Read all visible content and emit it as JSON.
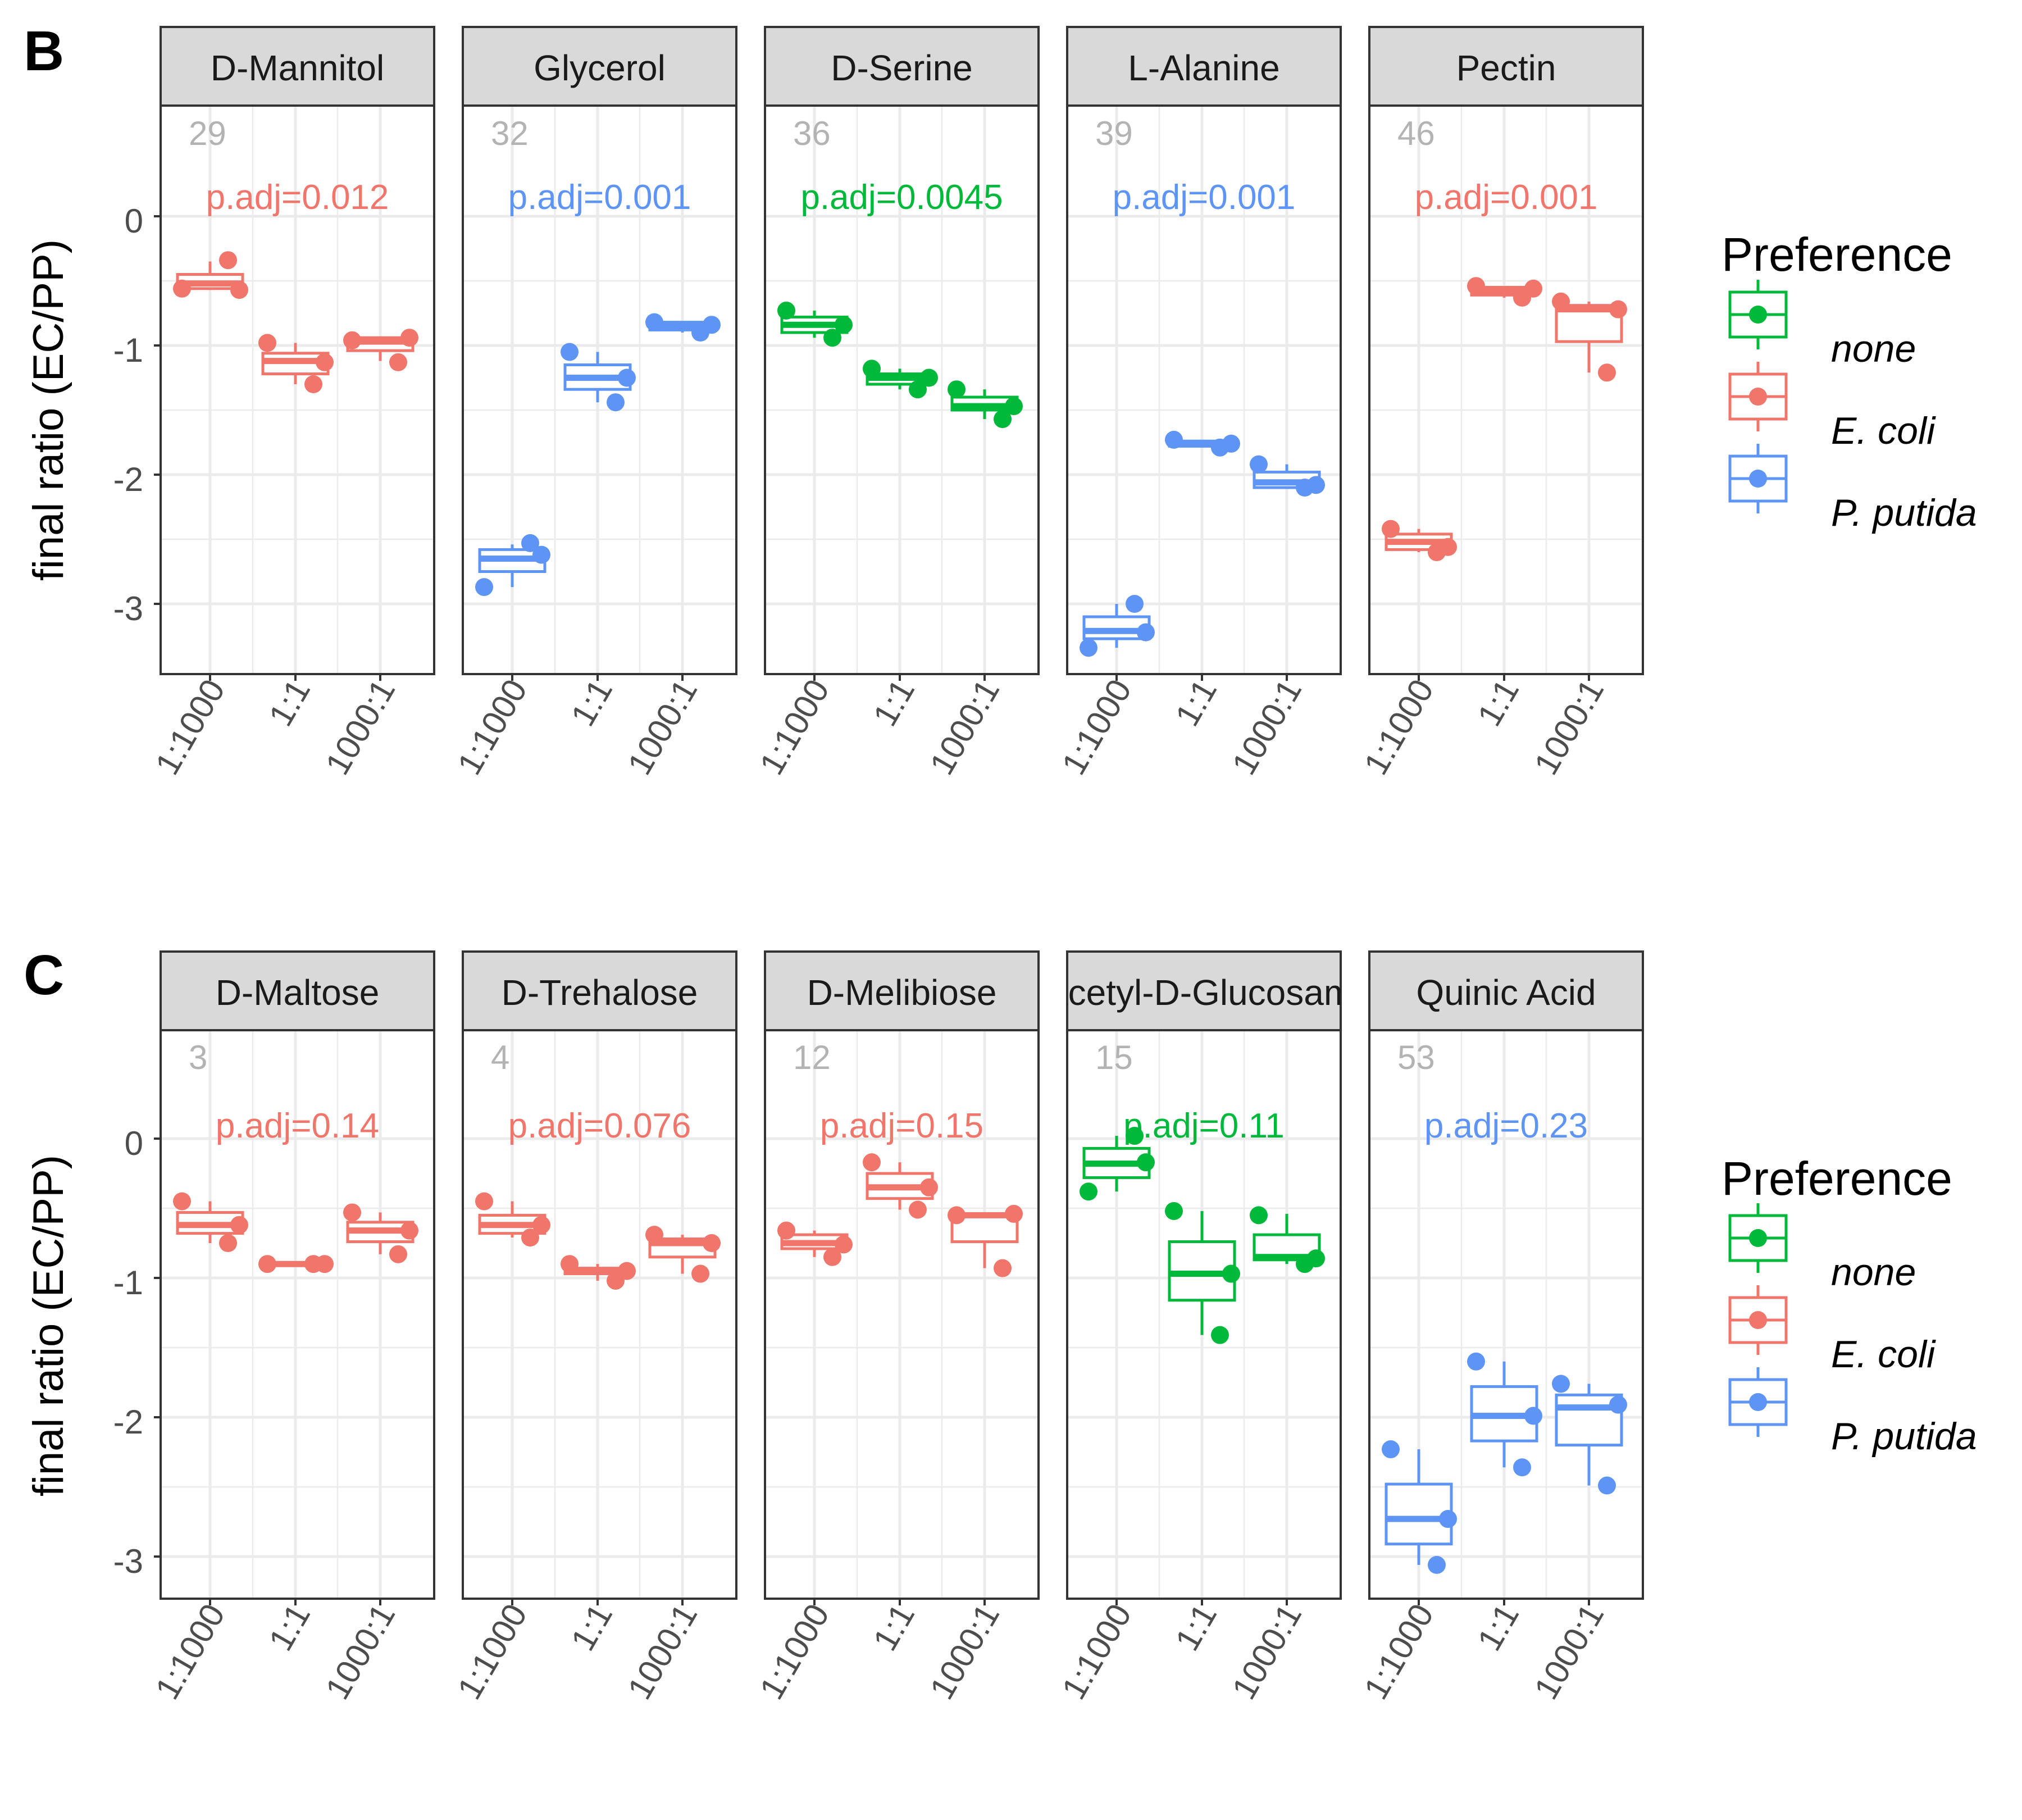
{
  "figure": {
    "y_axis_label": "final ratio (EC/PP)",
    "x_tick_labels": [
      "1:1000",
      "1:1",
      "1000:1"
    ],
    "legend_title": "Preference",
    "legend_entries": [
      {
        "key": "none",
        "label": "none"
      },
      {
        "key": "ecoli",
        "label": "E. coli"
      },
      {
        "key": "pputida",
        "label": "P. putida"
      }
    ]
  },
  "colors": {
    "none": "#00B83A",
    "ecoli": "#F0756A",
    "pputida": "#5E95F5",
    "strip_fill": "#D9D9D9",
    "gridline": "#EBEBEB",
    "panel_number": "#B3B3B3"
  },
  "chart_data": [
    {
      "type": "box",
      "row_label": "B",
      "ylim": [
        -3.5,
        0.85
      ],
      "yticks": [
        0,
        -1,
        -2,
        -3
      ],
      "ytick_labels": [
        "0",
        "-1",
        "-2",
        "-3"
      ],
      "categories": [
        "1:1000",
        "1:1",
        "1000:1"
      ],
      "legend_position": "right",
      "grid": true,
      "panels": [
        {
          "title": "D-Mannitol",
          "number": "29",
          "pvalue": "p.adj=0.012",
          "preference": "ecoli",
          "boxes": [
            {
              "q1": -0.56,
              "median": -0.52,
              "q3": -0.45,
              "whisker_low": -0.56,
              "whisker_high": -0.35,
              "points": [
                -0.56,
                -0.34,
                -0.57
              ]
            },
            {
              "q1": -1.22,
              "median": -1.12,
              "q3": -1.06,
              "whisker_low": -1.3,
              "whisker_high": -0.98,
              "points": [
                -0.98,
                -1.3,
                -1.13
              ]
            },
            {
              "q1": -1.04,
              "median": -0.97,
              "q3": -0.94,
              "whisker_low": -1.12,
              "whisker_high": -0.93,
              "points": [
                -0.96,
                -1.13,
                -0.94
              ]
            }
          ]
        },
        {
          "title": "Glycerol",
          "number": "32",
          "pvalue": "p.adj=0.001",
          "preference": "pputida",
          "boxes": [
            {
              "q1": -2.75,
              "median": -2.65,
              "q3": -2.58,
              "whisker_low": -2.87,
              "whisker_high": -2.54,
              "points": [
                -2.87,
                -2.53,
                -2.62
              ]
            },
            {
              "q1": -1.34,
              "median": -1.25,
              "q3": -1.15,
              "whisker_low": -1.44,
              "whisker_high": -1.05,
              "points": [
                -1.05,
                -1.44,
                -1.25
              ]
            },
            {
              "q1": -0.88,
              "median": -0.85,
              "q3": -0.82,
              "whisker_low": -0.9,
              "whisker_high": -0.82,
              "points": [
                -0.82,
                -0.9,
                -0.84
              ]
            }
          ]
        },
        {
          "title": "D-Serine",
          "number": "36",
          "pvalue": "p.adj=0.0045",
          "preference": "none",
          "boxes": [
            {
              "q1": -0.9,
              "median": -0.84,
              "q3": -0.78,
              "whisker_low": -0.94,
              "whisker_high": -0.73,
              "points": [
                -0.73,
                -0.94,
                -0.84
              ]
            },
            {
              "q1": -1.3,
              "median": -1.25,
              "q3": -1.22,
              "whisker_low": -1.34,
              "whisker_high": -1.18,
              "points": [
                -1.18,
                -1.34,
                -1.25
              ]
            },
            {
              "q1": -1.5,
              "median": -1.47,
              "q3": -1.4,
              "whisker_low": -1.57,
              "whisker_high": -1.34,
              "points": [
                -1.34,
                -1.57,
                -1.47
              ]
            }
          ]
        },
        {
          "title": "L-Alanine",
          "number": "39",
          "pvalue": "p.adj=0.001",
          "preference": "pputida",
          "boxes": [
            {
              "q1": -3.27,
              "median": -3.21,
              "q3": -3.1,
              "whisker_low": -3.34,
              "whisker_high": -3.0,
              "points": [
                -3.34,
                -3.0,
                -3.22
              ]
            },
            {
              "q1": -1.78,
              "median": -1.76,
              "q3": -1.74,
              "whisker_low": -1.79,
              "whisker_high": -1.73,
              "points": [
                -1.73,
                -1.79,
                -1.76
              ]
            },
            {
              "q1": -2.1,
              "median": -2.06,
              "q3": -1.98,
              "whisker_low": -2.11,
              "whisker_high": -1.92,
              "points": [
                -1.92,
                -2.1,
                -2.08
              ]
            }
          ]
        },
        {
          "title": "Pectin",
          "number": "46",
          "pvalue": "p.adj=0.001",
          "preference": "ecoli",
          "boxes": [
            {
              "q1": -2.58,
              "median": -2.52,
              "q3": -2.46,
              "whisker_low": -2.6,
              "whisker_high": -2.42,
              "points": [
                -2.42,
                -2.6,
                -2.56
              ]
            },
            {
              "q1": -0.61,
              "median": -0.58,
              "q3": -0.55,
              "whisker_low": -0.63,
              "whisker_high": -0.54,
              "points": [
                -0.54,
                -0.63,
                -0.56
              ]
            },
            {
              "q1": -0.97,
              "median": -0.72,
              "q3": -0.69,
              "whisker_low": -1.21,
              "whisker_high": -0.66,
              "points": [
                -0.66,
                -1.21,
                -0.72
              ]
            }
          ]
        }
      ]
    },
    {
      "type": "box",
      "row_label": "C",
      "ylim": [
        -3.25,
        0.85
      ],
      "yticks": [
        0,
        -1,
        -2,
        -3
      ],
      "ytick_labels": [
        "0",
        "-1",
        "-2",
        "-3"
      ],
      "categories": [
        "1:1000",
        "1:1",
        "1000:1"
      ],
      "legend_position": "right",
      "grid": true,
      "panels": [
        {
          "title": "D-Maltose",
          "number": "3",
          "pvalue": "p.adj=0.14",
          "preference": "ecoli",
          "boxes": [
            {
              "q1": -0.68,
              "median": -0.62,
              "q3": -0.53,
              "whisker_low": -0.75,
              "whisker_high": -0.45,
              "points": [
                -0.45,
                -0.75,
                -0.62
              ]
            },
            {
              "q1": -0.91,
              "median": -0.9,
              "q3": -0.89,
              "whisker_low": -0.92,
              "whisker_high": -0.88,
              "points": [
                -0.9,
                -0.9,
                -0.9
              ]
            },
            {
              "q1": -0.74,
              "median": -0.66,
              "q3": -0.6,
              "whisker_low": -0.83,
              "whisker_high": -0.53,
              "points": [
                -0.53,
                -0.83,
                -0.66
              ]
            }
          ]
        },
        {
          "title": "D-Trehalose",
          "number": "4",
          "pvalue": "p.adj=0.076",
          "preference": "ecoli",
          "boxes": [
            {
              "q1": -0.68,
              "median": -0.62,
              "q3": -0.55,
              "whisker_low": -0.71,
              "whisker_high": -0.45,
              "points": [
                -0.45,
                -0.71,
                -0.62
              ]
            },
            {
              "q1": -0.97,
              "median": -0.95,
              "q3": -0.93,
              "whisker_low": -1.02,
              "whisker_high": -0.9,
              "points": [
                -0.9,
                -1.02,
                -0.95
              ]
            },
            {
              "q1": -0.85,
              "median": -0.75,
              "q3": -0.72,
              "whisker_low": -0.97,
              "whisker_high": -0.69,
              "points": [
                -0.69,
                -0.97,
                -0.75
              ]
            }
          ]
        },
        {
          "title": "D-Melibiose",
          "number": "12",
          "pvalue": "p.adj=0.15",
          "preference": "ecoli",
          "boxes": [
            {
              "q1": -0.79,
              "median": -0.75,
              "q3": -0.69,
              "whisker_low": -0.85,
              "whisker_high": -0.66,
              "points": [
                -0.66,
                -0.85,
                -0.76
              ]
            },
            {
              "q1": -0.43,
              "median": -0.35,
              "q3": -0.25,
              "whisker_low": -0.51,
              "whisker_high": -0.17,
              "points": [
                -0.17,
                -0.51,
                -0.35
              ]
            },
            {
              "q1": -0.74,
              "median": -0.55,
              "q3": -0.54,
              "whisker_low": -0.93,
              "whisker_high": -0.53,
              "points": [
                -0.55,
                -0.93,
                -0.54
              ]
            }
          ]
        },
        {
          "title": "N-Acetyl-D-Glucosamine",
          "number": "15",
          "pvalue": "p.adj=0.11",
          "preference": "none",
          "boxes": [
            {
              "q1": -0.28,
              "median": -0.18,
              "q3": -0.07,
              "whisker_low": -0.38,
              "whisker_high": 0.02,
              "points": [
                -0.38,
                0.02,
                -0.17
              ]
            },
            {
              "q1": -1.16,
              "median": -0.97,
              "q3": -0.74,
              "whisker_low": -1.41,
              "whisker_high": -0.52,
              "points": [
                -0.52,
                -1.41,
                -0.97
              ]
            },
            {
              "q1": -0.87,
              "median": -0.85,
              "q3": -0.69,
              "whisker_low": -0.9,
              "whisker_high": -0.54,
              "points": [
                -0.55,
                -0.9,
                -0.86
              ]
            }
          ]
        },
        {
          "title": "Quinic Acid",
          "number": "53",
          "pvalue": "p.adj=0.23",
          "preference": "pputida",
          "boxes": [
            {
              "q1": -2.91,
              "median": -2.73,
              "q3": -2.48,
              "whisker_low": -3.06,
              "whisker_high": -2.23,
              "points": [
                -2.23,
                -3.06,
                -2.73
              ]
            },
            {
              "q1": -2.17,
              "median": -1.99,
              "q3": -1.78,
              "whisker_low": -2.36,
              "whisker_high": -1.6,
              "points": [
                -1.6,
                -2.36,
                -1.99
              ]
            },
            {
              "q1": -2.2,
              "median": -1.93,
              "q3": -1.84,
              "whisker_low": -2.49,
              "whisker_high": -1.76,
              "points": [
                -1.76,
                -2.49,
                -1.91
              ]
            }
          ]
        }
      ]
    }
  ]
}
